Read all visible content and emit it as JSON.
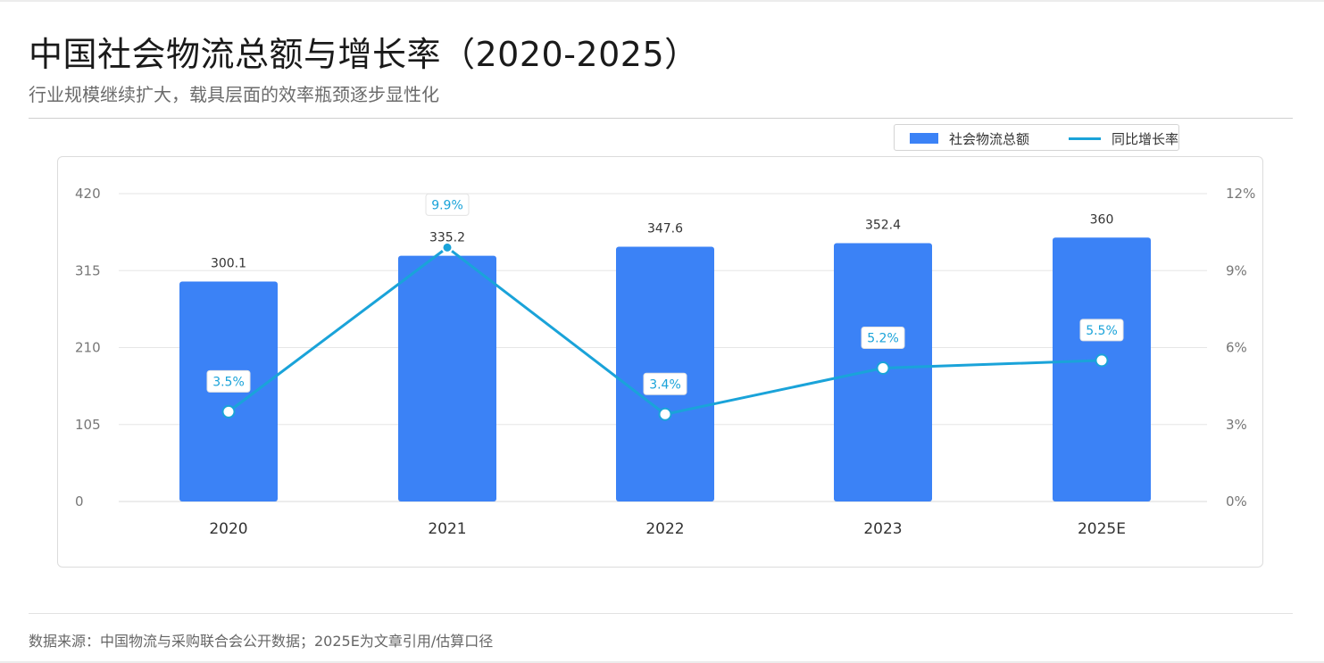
{
  "header": {
    "title": "中国社会物流总额与增长率（2020-2025）",
    "subtitle": "行业规模继续扩大，载具层面的效率瓶颈逐步显性化"
  },
  "legend": {
    "bar_label": "社会物流总额",
    "line_label": "同比增长率"
  },
  "footer": {
    "source": "数据来源：中国物流与采购联合会公开数据；2025E为文章引用/估算口径"
  },
  "colors": {
    "bar": "#3b82f6",
    "line": "#1aa3d9",
    "grid": "#e6e6e6",
    "axis_text": "#777777",
    "label_text": "#333333"
  },
  "chart_data": {
    "type": "bar",
    "categories": [
      "2020",
      "2021",
      "2022",
      "2023",
      "2025E"
    ],
    "series": [
      {
        "name": "社会物流总额",
        "type": "bar",
        "axis": "left",
        "values": [
          300.1,
          335.2,
          347.6,
          352.4,
          360
        ],
        "labels": [
          "300.1",
          "335.2",
          "347.6",
          "352.4",
          "360"
        ]
      },
      {
        "name": "同比增长率",
        "type": "line",
        "axis": "right",
        "values": [
          3.5,
          9.9,
          3.4,
          5.2,
          5.5
        ],
        "labels": [
          "3.5%",
          "9.9%",
          "3.4%",
          "5.2%",
          "5.5%"
        ]
      }
    ],
    "y_left": {
      "range": [
        0,
        420
      ],
      "ticks": [
        "0",
        "105",
        "210",
        "315",
        "420"
      ]
    },
    "y_right": {
      "range": [
        0,
        12
      ],
      "ticks": [
        "0%",
        "3%",
        "6%",
        "9%",
        "12%"
      ]
    },
    "grid": true,
    "legend_position": "top-right"
  }
}
